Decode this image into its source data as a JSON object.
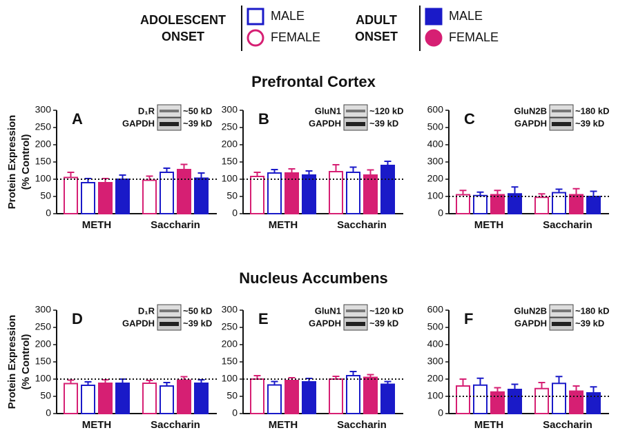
{
  "legend": [
    {
      "title": [
        "ADOLESCENT",
        "ONSET"
      ],
      "items": [
        {
          "label": "MALE",
          "marker": "square",
          "fill": "open",
          "color": "#1a1ac8"
        },
        {
          "label": "FEMALE",
          "marker": "circle",
          "fill": "open",
          "color": "#d61f73"
        }
      ]
    },
    {
      "title": [
        "ADULT",
        "ONSET"
      ],
      "items": [
        {
          "label": "MALE",
          "marker": "square",
          "fill": "filled",
          "color": "#1a1ac8"
        },
        {
          "label": "FEMALE",
          "marker": "circle",
          "fill": "filled",
          "color": "#d61f73"
        }
      ]
    }
  ],
  "sections": [
    "Prefrontal Cortex",
    "Nucleus Accumbens"
  ],
  "chart_data": [
    {
      "type": "bar",
      "title": "A",
      "ylabel": [
        "Protein Expression",
        "(% Control)"
      ],
      "categories": [
        "METH",
        "Saccharin"
      ],
      "blot": {
        "target": "D₁R",
        "target_kd": "~50 kD",
        "control": "GAPDH",
        "control_kd": "~39 kD"
      },
      "ylim": [
        0,
        300
      ],
      "yticks": [
        0,
        50,
        100,
        150,
        200,
        250,
        300
      ],
      "hline": 100,
      "series": [
        {
          "color": "#d61f73",
          "fill": "open",
          "values": [
            105,
            97
          ],
          "errors": [
            15,
            12
          ]
        },
        {
          "color": "#1a1ac8",
          "fill": "open",
          "values": [
            90,
            120
          ],
          "errors": [
            12,
            12
          ]
        },
        {
          "color": "#d61f73",
          "fill": "filled",
          "values": [
            90,
            128
          ],
          "errors": [
            12,
            15
          ]
        },
        {
          "color": "#1a1ac8",
          "fill": "filled",
          "values": [
            100,
            103
          ],
          "errors": [
            12,
            15
          ]
        }
      ]
    },
    {
      "type": "bar",
      "title": "B",
      "categories": [
        "METH",
        "Saccharin"
      ],
      "blot": {
        "target": "GluN1",
        "target_kd": "~120 kD",
        "control": "GAPDH",
        "control_kd": "~39 kD"
      },
      "ylim": [
        0,
        300
      ],
      "yticks": [
        0,
        50,
        100,
        150,
        200,
        250,
        300
      ],
      "hline": 100,
      "series": [
        {
          "color": "#d61f73",
          "fill": "open",
          "values": [
            108,
            122
          ],
          "errors": [
            12,
            20
          ]
        },
        {
          "color": "#1a1ac8",
          "fill": "open",
          "values": [
            118,
            120
          ],
          "errors": [
            10,
            15
          ]
        },
        {
          "color": "#d61f73",
          "fill": "filled",
          "values": [
            118,
            112
          ],
          "errors": [
            12,
            15
          ]
        },
        {
          "color": "#1a1ac8",
          "fill": "filled",
          "values": [
            112,
            140
          ],
          "errors": [
            12,
            12
          ]
        }
      ]
    },
    {
      "type": "bar",
      "title": "C",
      "categories": [
        "METH",
        "Saccharin"
      ],
      "blot": {
        "target": "GluN2B",
        "target_kd": "~180 kD",
        "control": "GAPDH",
        "control_kd": "~39 kD"
      },
      "ylim": [
        0,
        600
      ],
      "yticks": [
        0,
        100,
        200,
        300,
        400,
        500,
        600
      ],
      "hline": 100,
      "series": [
        {
          "color": "#d61f73",
          "fill": "open",
          "values": [
            110,
            95
          ],
          "errors": [
            25,
            20
          ]
        },
        {
          "color": "#1a1ac8",
          "fill": "open",
          "values": [
            105,
            122
          ],
          "errors": [
            20,
            20
          ]
        },
        {
          "color": "#d61f73",
          "fill": "filled",
          "values": [
            110,
            110
          ],
          "errors": [
            25,
            35
          ]
        },
        {
          "color": "#1a1ac8",
          "fill": "filled",
          "values": [
            115,
            100
          ],
          "errors": [
            40,
            30
          ]
        }
      ]
    },
    {
      "type": "bar",
      "title": "D",
      "ylabel": [
        "Protein Expression",
        "(% Control)"
      ],
      "categories": [
        "METH",
        "Saccharin"
      ],
      "blot": {
        "target": "D₁R",
        "target_kd": "~50 kD",
        "control": "GAPDH",
        "control_kd": "~39 kD"
      },
      "ylim": [
        0,
        300
      ],
      "yticks": [
        0,
        50,
        100,
        150,
        200,
        250,
        300
      ],
      "hline": 100,
      "series": [
        {
          "color": "#d61f73",
          "fill": "open",
          "values": [
            87,
            88
          ],
          "errors": [
            10,
            8
          ]
        },
        {
          "color": "#1a1ac8",
          "fill": "open",
          "values": [
            82,
            80
          ],
          "errors": [
            10,
            10
          ]
        },
        {
          "color": "#d61f73",
          "fill": "filled",
          "values": [
            88,
            97
          ],
          "errors": [
            10,
            10
          ]
        },
        {
          "color": "#1a1ac8",
          "fill": "filled",
          "values": [
            88,
            88
          ],
          "errors": [
            12,
            10
          ]
        }
      ]
    },
    {
      "type": "bar",
      "title": "E",
      "categories": [
        "METH",
        "Saccharin"
      ],
      "blot": {
        "target": "GluN1",
        "target_kd": "~120 kD",
        "control": "GAPDH",
        "control_kd": "~39 kD"
      },
      "ylim": [
        0,
        300
      ],
      "yticks": [
        0,
        50,
        100,
        150,
        200,
        250,
        300
      ],
      "hline": 100,
      "series": [
        {
          "color": "#d61f73",
          "fill": "open",
          "values": [
            100,
            100
          ],
          "errors": [
            10,
            8
          ]
        },
        {
          "color": "#1a1ac8",
          "fill": "open",
          "values": [
            83,
            110
          ],
          "errors": [
            10,
            12
          ]
        },
        {
          "color": "#d61f73",
          "fill": "filled",
          "values": [
            96,
            105
          ],
          "errors": [
            8,
            8
          ]
        },
        {
          "color": "#1a1ac8",
          "fill": "filled",
          "values": [
            92,
            85
          ],
          "errors": [
            10,
            8
          ]
        }
      ]
    },
    {
      "type": "bar",
      "title": "F",
      "categories": [
        "METH",
        "Saccharin"
      ],
      "blot": {
        "target": "GluN2B",
        "target_kd": "~180 kD",
        "control": "GAPDH",
        "control_kd": "~39 kD"
      },
      "ylim": [
        0,
        600
      ],
      "yticks": [
        0,
        100,
        200,
        300,
        400,
        500,
        600
      ],
      "hline": 100,
      "series": [
        {
          "color": "#d61f73",
          "fill": "open",
          "values": [
            160,
            145
          ],
          "errors": [
            40,
            35
          ]
        },
        {
          "color": "#1a1ac8",
          "fill": "open",
          "values": [
            165,
            175
          ],
          "errors": [
            40,
            40
          ]
        },
        {
          "color": "#d61f73",
          "fill": "filled",
          "values": [
            125,
            130
          ],
          "errors": [
            25,
            30
          ]
        },
        {
          "color": "#1a1ac8",
          "fill": "filled",
          "values": [
            140,
            120
          ],
          "errors": [
            30,
            35
          ]
        }
      ]
    }
  ]
}
